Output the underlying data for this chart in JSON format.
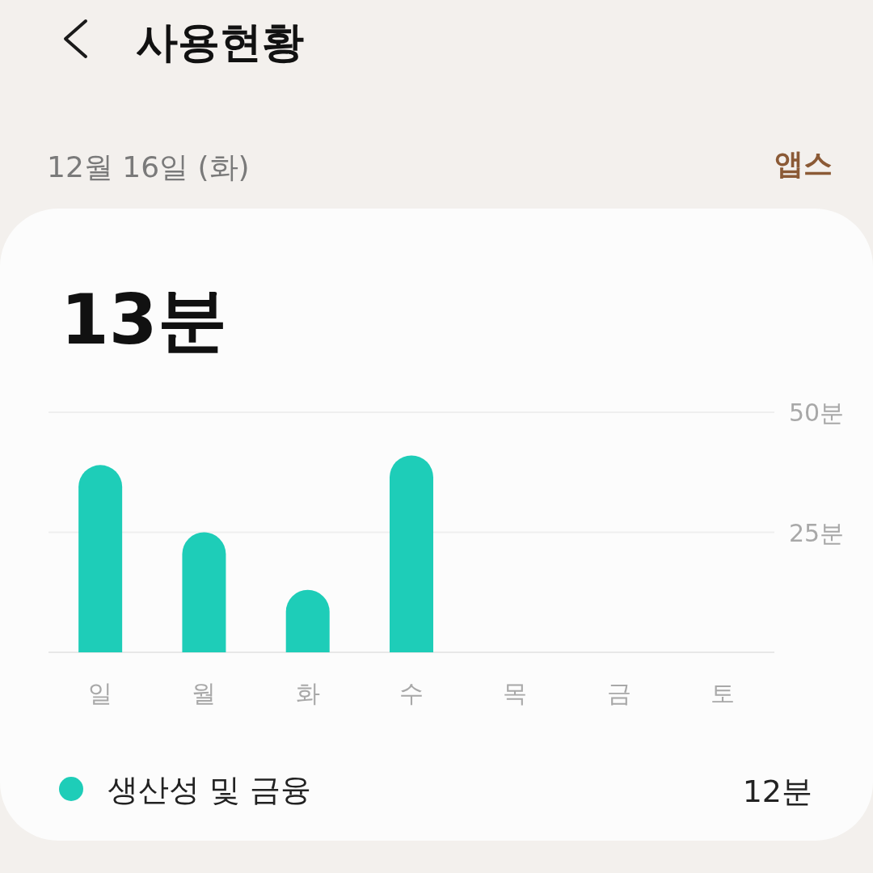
{
  "chart_data": {
    "type": "bar",
    "title": "사용현황",
    "subtitle": "12월 16일 (화)",
    "categories": [
      "일",
      "월",
      "화",
      "수",
      "목",
      "금",
      "토"
    ],
    "series": [
      {
        "name": "생산성 및 금융",
        "color": "#1ecdb8",
        "values": [
          39,
          25,
          13,
          41,
          null,
          null,
          null
        ]
      }
    ],
    "ylim": [
      0,
      50
    ],
    "yticks": [
      {
        "value": 0,
        "label": null
      },
      {
        "value": 25,
        "label": "25분"
      },
      {
        "value": 50,
        "label": "50분"
      }
    ],
    "grid": "y",
    "legend": "bottom",
    "annotations": [
      "앱스",
      "13분",
      "12분"
    ]
  }
}
